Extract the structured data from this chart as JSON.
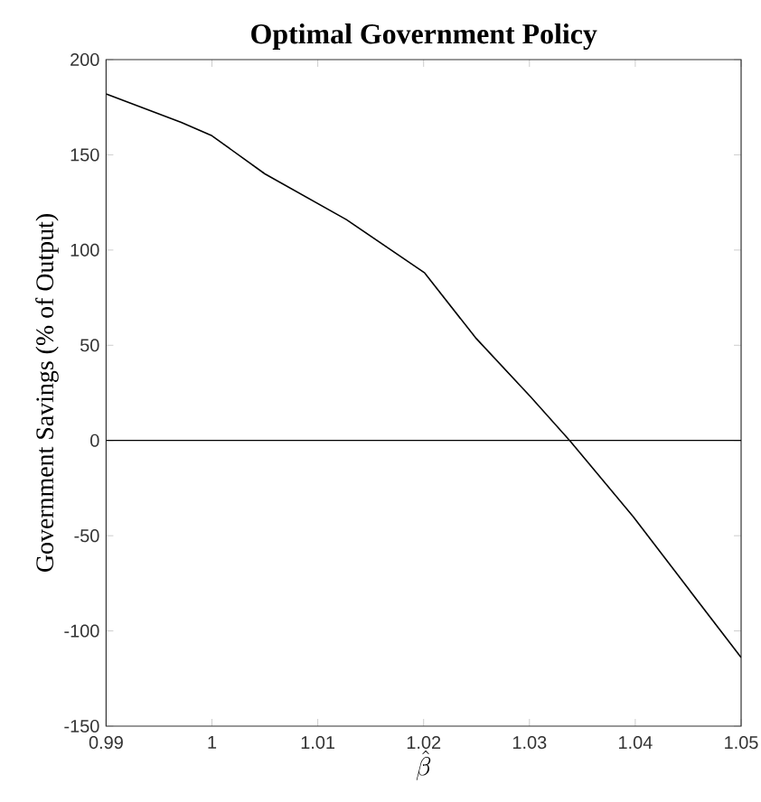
{
  "chart_data": {
    "type": "line",
    "title": "Optimal Government Policy",
    "xlabel": "\\hat{\\beta}",
    "ylabel": "Government Savings (% of Output)",
    "x": [
      0.99,
      0.9971,
      1.0,
      1.005,
      1.0127,
      1.0201,
      1.0249,
      1.0301,
      1.0338,
      1.0398,
      1.0449,
      1.05
    ],
    "series": [
      {
        "color": "#000000",
        "values": [
          182,
          167,
          160,
          140,
          116,
          88,
          54,
          23,
          0,
          -40,
          -77,
          -114
        ]
      }
    ],
    "xlim": [
      0.99,
      1.05
    ],
    "ylim": [
      -150,
      200
    ],
    "xticks": [
      0.99,
      1,
      1.01,
      1.02,
      1.03,
      1.04,
      1.05
    ],
    "yticks": [
      -150,
      -100,
      -50,
      0,
      50,
      100,
      150,
      200
    ],
    "ref_lines": [
      {
        "axis": "y",
        "value": 0,
        "color": "#000000"
      }
    ],
    "grid": false,
    "marker": "none",
    "line_style": "solid"
  }
}
